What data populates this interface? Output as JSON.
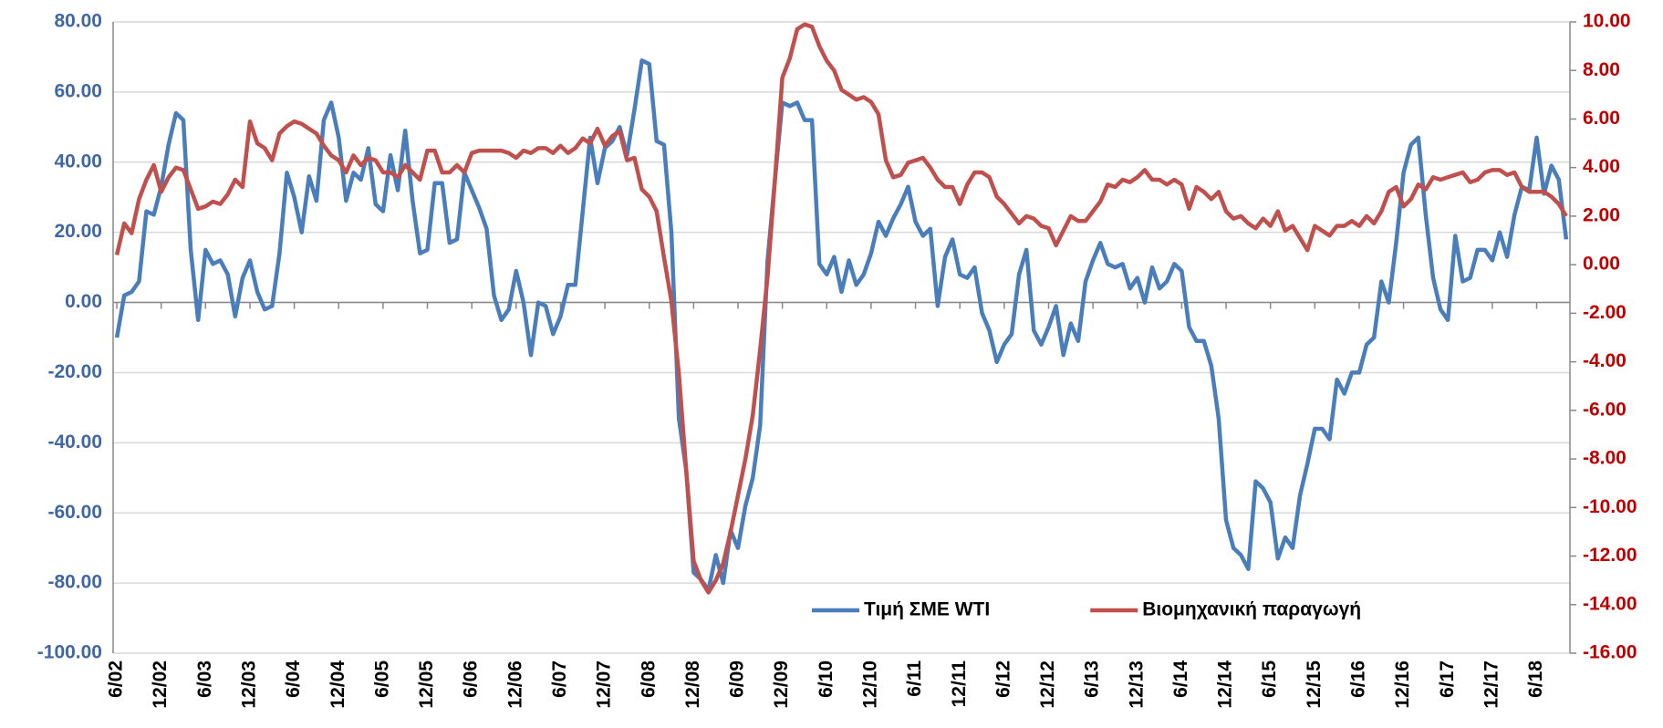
{
  "chart_data": {
    "type": "line",
    "categories": [
      "6/02",
      null,
      null,
      null,
      null,
      null,
      "12/02",
      null,
      null,
      null,
      null,
      null,
      "6/03",
      null,
      null,
      null,
      null,
      null,
      "12/03",
      null,
      null,
      null,
      null,
      null,
      "6/04",
      null,
      null,
      null,
      null,
      null,
      "12/04",
      null,
      null,
      null,
      null,
      null,
      "6/05",
      null,
      null,
      null,
      null,
      null,
      "12/05",
      null,
      null,
      null,
      null,
      null,
      "6/06",
      null,
      null,
      null,
      null,
      null,
      "12/06",
      null,
      null,
      null,
      null,
      null,
      "6/07",
      null,
      null,
      null,
      null,
      null,
      "12/07",
      null,
      null,
      null,
      null,
      null,
      "6/08",
      null,
      null,
      null,
      null,
      null,
      "12/08",
      null,
      null,
      null,
      null,
      null,
      "6/09",
      null,
      null,
      null,
      null,
      null,
      "12/09",
      null,
      null,
      null,
      null,
      null,
      "6/10",
      null,
      null,
      null,
      null,
      null,
      "12/10",
      null,
      null,
      null,
      null,
      null,
      "6/11",
      null,
      null,
      null,
      null,
      null,
      "12/11",
      null,
      null,
      null,
      null,
      null,
      "6/12",
      null,
      null,
      null,
      null,
      null,
      "12/12",
      null,
      null,
      null,
      null,
      null,
      "6/13",
      null,
      null,
      null,
      null,
      null,
      "12/13",
      null,
      null,
      null,
      null,
      null,
      "6/14",
      null,
      null,
      null,
      null,
      null,
      "12/14",
      null,
      null,
      null,
      null,
      null,
      "6/15",
      null,
      null,
      null,
      null,
      null,
      "12/15",
      null,
      null,
      null,
      null,
      null,
      "6/16",
      null,
      null,
      null,
      null,
      null,
      "12/16",
      null,
      null,
      null,
      null,
      null,
      "6/17",
      null,
      null,
      null,
      null,
      null,
      "12/17",
      null,
      null,
      null,
      null,
      null,
      "6/18",
      null,
      null,
      null,
      null
    ],
    "series": [
      {
        "name": "Τιμή ΣΜΕ WTI",
        "color": "#4a7ebb",
        "axis": "y",
        "values": [
          -10,
          2,
          3,
          6,
          26,
          25,
          33,
          45,
          54,
          52,
          15,
          -5,
          15,
          11,
          12,
          8,
          -4,
          7,
          12,
          3,
          -2,
          -1,
          14,
          37,
          30,
          20,
          36,
          29,
          52,
          57,
          47,
          29,
          37,
          35,
          44,
          28,
          26,
          42,
          32,
          49,
          29,
          14,
          15,
          34,
          34,
          17,
          18,
          37,
          32,
          27,
          21,
          2,
          -5,
          -2,
          9,
          0,
          -15,
          0,
          -1,
          -9,
          -4,
          5,
          5,
          26,
          47,
          34,
          44,
          46,
          50,
          42,
          55,
          69,
          68,
          46,
          45,
          20,
          -33,
          -48,
          -77,
          -79,
          -82,
          -72,
          -80,
          -65,
          -70,
          -58,
          -50,
          -35,
          12,
          35,
          57,
          56,
          57,
          52,
          52,
          11,
          8,
          13,
          3,
          12,
          5,
          8,
          14,
          23,
          19,
          24,
          28,
          33,
          23,
          19,
          21,
          -1,
          13,
          18,
          8,
          7,
          10,
          -3,
          -8,
          -17,
          -12,
          -9,
          8,
          15,
          -8,
          -12,
          -7,
          -1,
          -15,
          -6,
          -11,
          6,
          12,
          17,
          11,
          10,
          11,
          4,
          7,
          0,
          10,
          4,
          6,
          11,
          9,
          -7,
          -11,
          -11,
          -18,
          -33,
          -62,
          -70,
          -72,
          -76,
          -51,
          -53,
          -57,
          -73,
          -67,
          -70,
          -55,
          -46,
          -36,
          -36,
          -39,
          -22,
          -26,
          -20,
          -20,
          -12,
          -10,
          6,
          0,
          17,
          37,
          45,
          47,
          25,
          7,
          -2,
          -5,
          19,
          6,
          7,
          15,
          15,
          12,
          20,
          13,
          25,
          33,
          32,
          47,
          31,
          39,
          35,
          18
        ]
      },
      {
        "name": "Βιομηχανική παραγωγή",
        "color": "#c0504d",
        "axis": "y2",
        "values": [
          0.4,
          1.7,
          1.3,
          2.7,
          3.5,
          4.1,
          3.0,
          3.6,
          4.0,
          3.9,
          3.1,
          2.3,
          2.4,
          2.6,
          2.5,
          2.9,
          3.5,
          3.2,
          5.9,
          5.0,
          4.8,
          4.3,
          5.4,
          5.7,
          5.9,
          5.8,
          5.6,
          5.4,
          4.9,
          4.5,
          4.3,
          3.8,
          4.5,
          4.1,
          4.4,
          4.3,
          3.8,
          3.8,
          3.6,
          4.1,
          3.8,
          3.5,
          4.7,
          4.7,
          3.8,
          3.8,
          4.1,
          3.8,
          4.6,
          4.7,
          4.7,
          4.7,
          4.7,
          4.6,
          4.4,
          4.7,
          4.6,
          4.8,
          4.8,
          4.6,
          4.9,
          4.6,
          4.8,
          5.2,
          5.0,
          5.6,
          4.9,
          5.3,
          5.5,
          4.3,
          4.4,
          3.1,
          2.8,
          2.2,
          0.3,
          -1.5,
          -4.5,
          -8.5,
          -12.2,
          -13.0,
          -13.5,
          -13.0,
          -12.3,
          -11.0,
          -9.5,
          -8.0,
          -6.2,
          -3.5,
          -0.5,
          3.5,
          7.7,
          8.5,
          9.7,
          9.9,
          9.8,
          9.0,
          8.4,
          8.0,
          7.2,
          7.0,
          6.8,
          6.9,
          6.7,
          6.2,
          4.3,
          3.6,
          3.7,
          4.2,
          4.3,
          4.4,
          4.0,
          3.5,
          3.2,
          3.2,
          2.5,
          3.3,
          3.8,
          3.8,
          3.6,
          2.8,
          2.5,
          2.1,
          1.7,
          2.0,
          1.9,
          1.6,
          1.5,
          0.8,
          1.4,
          2.0,
          1.8,
          1.8,
          2.2,
          2.6,
          3.3,
          3.2,
          3.5,
          3.4,
          3.6,
          3.9,
          3.5,
          3.5,
          3.3,
          3.5,
          3.3,
          2.3,
          3.2,
          3.0,
          2.7,
          3.0,
          2.2,
          1.9,
          2.0,
          1.7,
          1.5,
          1.9,
          1.6,
          2.2,
          1.4,
          1.6,
          1.1,
          0.6,
          1.6,
          1.4,
          1.2,
          1.6,
          1.6,
          1.8,
          1.6,
          2.0,
          1.7,
          2.2,
          3.0,
          3.2,
          2.4,
          2.7,
          3.3,
          3.1,
          3.6,
          3.5,
          3.6,
          3.7,
          3.8,
          3.4,
          3.5,
          3.8,
          3.9,
          3.9,
          3.7,
          3.8,
          3.2,
          3.0,
          3.0,
          3.0,
          2.8,
          2.5,
          2.0
        ]
      }
    ],
    "ylim": [
      -100,
      80
    ],
    "yticks": [
      {
        "value": -100,
        "label": "-100.00"
      },
      {
        "value": -80,
        "label": "-80.00"
      },
      {
        "value": -60,
        "label": "-60.00"
      },
      {
        "value": -40,
        "label": "-40.00"
      },
      {
        "value": -20,
        "label": "-20.00"
      },
      {
        "value": 0,
        "label": "0.00"
      },
      {
        "value": 20,
        "label": "20.00"
      },
      {
        "value": 40,
        "label": "40.00"
      },
      {
        "value": 60,
        "label": "60.00"
      },
      {
        "value": 80,
        "label": "80.00"
      }
    ],
    "y2lim": [
      -16,
      10
    ],
    "y2ticks": [
      {
        "value": -16,
        "label": "-16.00"
      },
      {
        "value": -14,
        "label": "-14.00"
      },
      {
        "value": -12,
        "label": "-12.00"
      },
      {
        "value": -10,
        "label": "-10.00"
      },
      {
        "value": -8,
        "label": "-8.00"
      },
      {
        "value": -6,
        "label": "-6.00"
      },
      {
        "value": -4,
        "label": "-4.00"
      },
      {
        "value": -2,
        "label": "-2.00"
      },
      {
        "value": 0,
        "label": "0.00"
      },
      {
        "value": 2,
        "label": "2.00"
      },
      {
        "value": 4,
        "label": "4.00"
      },
      {
        "value": 6,
        "label": "6.00"
      },
      {
        "value": 8,
        "label": "8.00"
      },
      {
        "value": 10,
        "label": "10.00"
      }
    ],
    "ytick_color": "#3f67a3",
    "y2tick_color": "#c00000",
    "grid": true,
    "legend": "lower center"
  }
}
